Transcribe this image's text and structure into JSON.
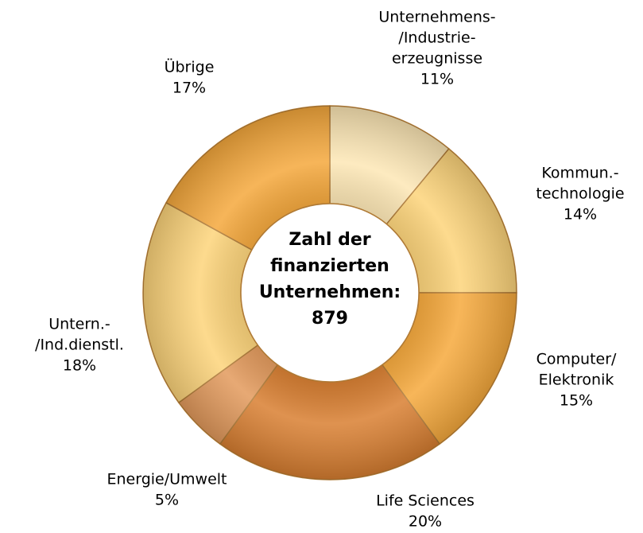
{
  "chart_data": {
    "type": "donut",
    "center_text": [
      "Zahl der",
      "finanzierten",
      "Unternehmen:",
      "879"
    ],
    "categories": [
      [
        "Unternehmens-",
        "/Industrie-",
        "erzeugnisse"
      ],
      [
        "Kommun.-",
        "technologie"
      ],
      [
        "Computer/",
        "Elektronik"
      ],
      [
        "Life Sciences"
      ],
      [
        "Energie/Umwelt"
      ],
      [
        "Untern.-",
        "/Ind.dienstl."
      ],
      [
        "Übrige"
      ]
    ],
    "values": [
      11,
      14,
      15,
      20,
      5,
      18,
      17
    ],
    "value_labels": [
      "11%",
      "14%",
      "15%",
      "20%",
      "5%",
      "18%",
      "17%"
    ],
    "colors": [
      "#fde7b5",
      "#fdd47a",
      "#f6a93c",
      "#d97f31",
      "#e39a5c",
      "#fdd47a",
      "#f5a83c"
    ]
  }
}
